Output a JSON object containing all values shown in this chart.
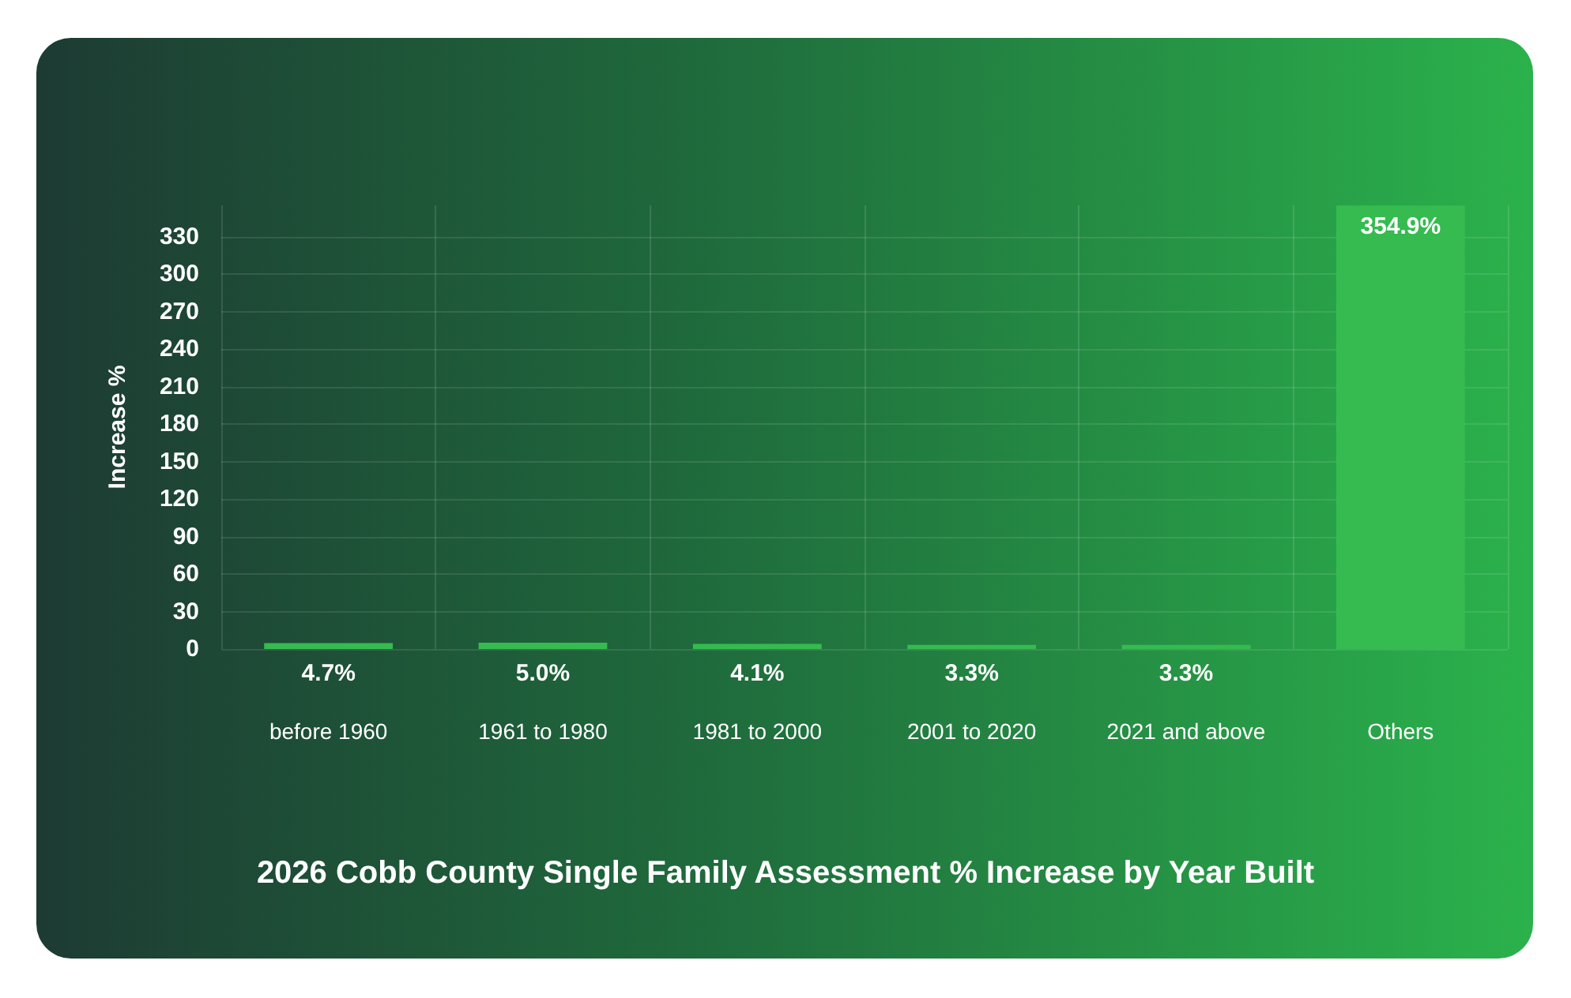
{
  "chart_data": {
    "type": "bar",
    "title": "2026 Cobb County Single Family Assessment % Increase by Year Built",
    "ylabel": "Increase %",
    "categories": [
      "before 1960",
      "1961 to 1980",
      "1981 to 2000",
      "2001 to 2020",
      "2021 and above",
      "Others"
    ],
    "values": [
      4.7,
      5.0,
      4.1,
      3.3,
      3.3,
      354.9
    ],
    "value_labels": [
      "4.7%",
      "5.0%",
      "4.1%",
      "3.3%",
      "3.3%",
      "354.9%"
    ],
    "color": "#35bb50",
    "ylim": [
      0,
      355
    ],
    "yticks": [
      0,
      30,
      60,
      90,
      120,
      150,
      180,
      210,
      240,
      270,
      300,
      330
    ],
    "grid": true
  }
}
